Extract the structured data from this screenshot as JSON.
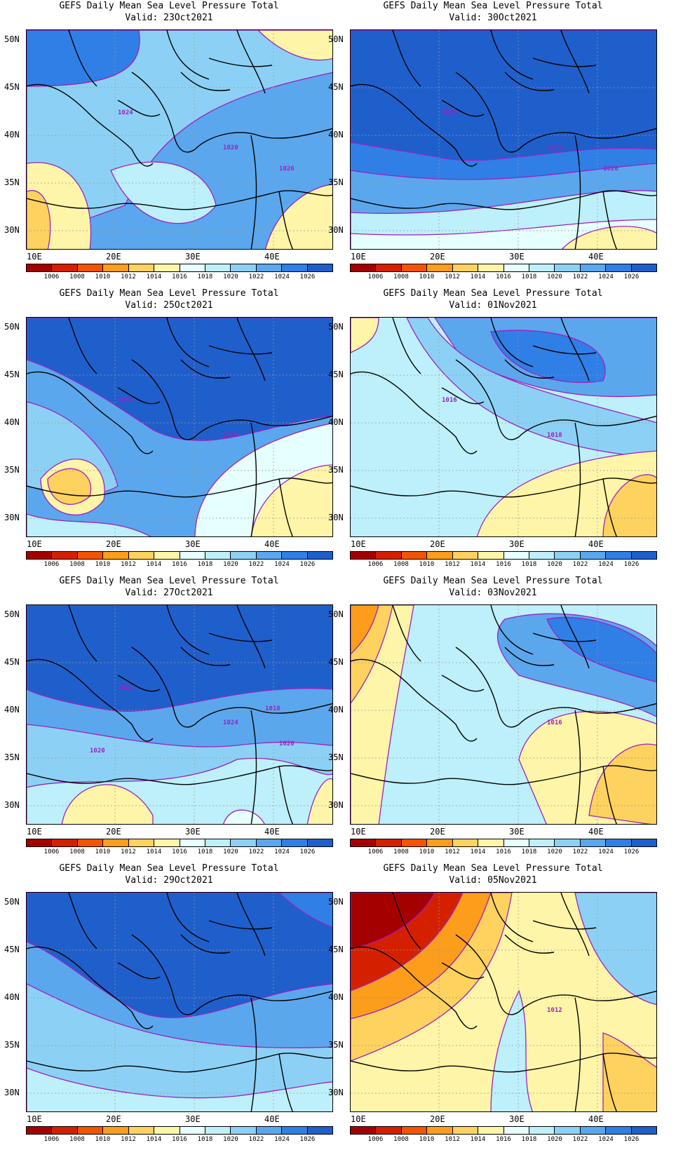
{
  "panels": [
    {
      "title": "GEFS Daily Mean Sea Level Pressure Total",
      "valid": "Valid: 23Oct2021",
      "contour_labels": [
        "1020",
        "1024",
        "1026"
      ]
    },
    {
      "title": "GEFS Daily Mean Sea Level Pressure Total",
      "valid": "Valid: 30Oct2021",
      "contour_labels": [
        "1024",
        "1020",
        "1020"
      ]
    },
    {
      "title": "GEFS Daily Mean Sea Level Pressure Total",
      "valid": "Valid: 25Oct2021",
      "contour_labels": [
        "1022",
        "1014"
      ]
    },
    {
      "title": "GEFS Daily Mean Sea Level Pressure Total",
      "valid": "Valid: 01Nov2021",
      "contour_labels": [
        "1018",
        "1016"
      ]
    },
    {
      "title": "GEFS Daily Mean Sea Level Pressure Total",
      "valid": "Valid: 27Oct2021",
      "contour_labels": [
        "1024",
        "1022",
        "1020",
        "1020",
        "1018"
      ]
    },
    {
      "title": "GEFS Daily Mean Sea Level Pressure Total",
      "valid": "Valid: 03Nov2021",
      "contour_labels": [
        "1016"
      ]
    },
    {
      "title": "GEFS Daily Mean Sea Level Pressure Total",
      "valid": "Valid: 29Oct2021",
      "contour_labels": []
    },
    {
      "title": "GEFS Daily Mean Sea Level Pressure Total",
      "valid": "Valid: 05Nov2021",
      "contour_labels": [
        "1012"
      ]
    }
  ],
  "lat_labels": [
    "50N",
    "45N",
    "40N",
    "35N",
    "30N"
  ],
  "lon_labels": [
    "10E",
    "20E",
    "30E",
    "40E"
  ],
  "colorbar": {
    "labels": [
      "1006",
      "1008",
      "1010",
      "1012",
      "1014",
      "1016",
      "1018",
      "1020",
      "1022",
      "1024",
      "1026"
    ],
    "colors": [
      "#a50000",
      "#d52000",
      "#f25400",
      "#fc9d1b",
      "#fed25f",
      "#fff5a8",
      "#e6ffff",
      "#bdf0fa",
      "#8cd1f5",
      "#5aa7ee",
      "#2f7fe6",
      "#1f5fcc"
    ]
  },
  "colors": {
    "contour": "#a020c0",
    "coast": "#000000",
    "grid": "#999999"
  }
}
